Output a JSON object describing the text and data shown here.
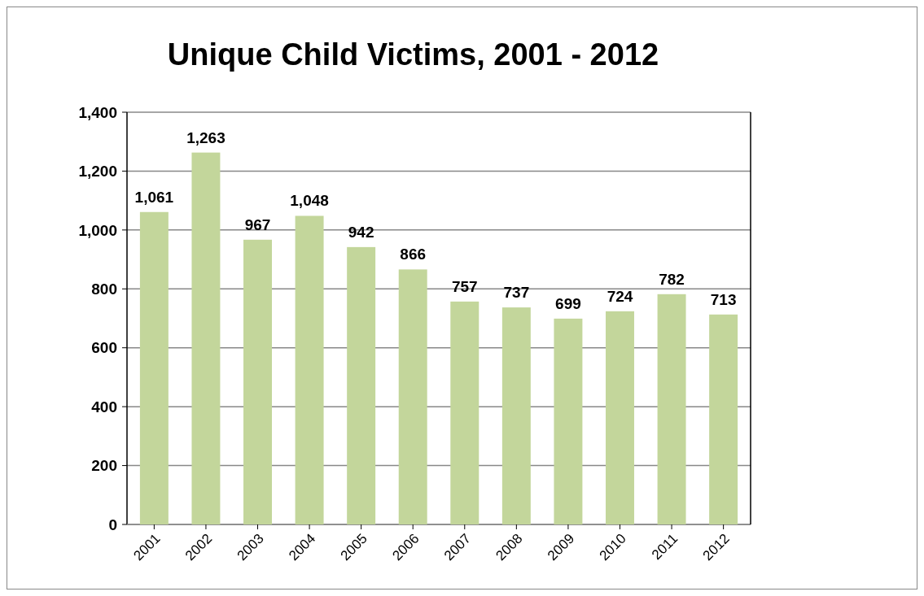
{
  "chart_data": {
    "type": "bar",
    "title": "Unique Child Victims, 2001 - 2012",
    "categories": [
      "2001",
      "2002",
      "2003",
      "2004",
      "2005",
      "2006",
      "2007",
      "2008",
      "2009",
      "2010",
      "2011",
      "2012"
    ],
    "values": [
      1061,
      1263,
      967,
      1048,
      942,
      866,
      757,
      737,
      699,
      724,
      782,
      713
    ],
    "value_labels": [
      "1,061",
      "1,263",
      "967",
      "1,048",
      "942",
      "866",
      "757",
      "737",
      "699",
      "724",
      "782",
      "713"
    ],
    "color": "#c3d69b",
    "ylim": [
      0,
      1400
    ],
    "yticks": [
      0,
      200,
      400,
      600,
      800,
      {
        "value": 1000,
        "label": "1,000"
      },
      {
        "value": 1200,
        "label": "1,200"
      },
      {
        "value": 1400,
        "label": "1,400"
      }
    ],
    "grid": "y"
  }
}
